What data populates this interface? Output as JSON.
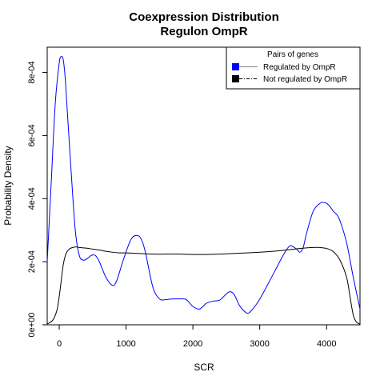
{
  "chart_data": {
    "type": "line",
    "title": "Coexpression Distribution",
    "subtitle": "Regulon OmpR",
    "xlabel": "SCR",
    "ylabel": "Probability Density",
    "xlim": [
      -180,
      4500
    ],
    "ylim": [
      0,
      0.00088
    ],
    "x_ticks": [
      0,
      1000,
      2000,
      3000,
      4000
    ],
    "x_tick_labels": [
      "0",
      "1000",
      "2000",
      "3000",
      "4000"
    ],
    "y_ticks": [
      0,
      0.0002,
      0.0004,
      0.0006,
      0.0008
    ],
    "y_tick_labels": [
      "0e+00",
      "2e-04",
      "4e-04",
      "6e-04",
      "8e-04"
    ],
    "grid": false,
    "legend": {
      "title": "Pairs of genes",
      "placement": "top-right",
      "entries": [
        "Regulated by OmpR",
        "Not regulated by OmpR"
      ]
    },
    "series": [
      {
        "name": "Regulated by OmpR",
        "color": "#0000ff",
        "x": [
          -180,
          -120,
          -60,
          0,
          30,
          60,
          90,
          120,
          180,
          240,
          300,
          360,
          420,
          480,
          540,
          600,
          700,
          800,
          860,
          950,
          1050,
          1100,
          1150,
          1200,
          1250,
          1300,
          1400,
          1500,
          1600,
          1700,
          1800,
          1900,
          2000,
          2100,
          2200,
          2300,
          2400,
          2500,
          2560,
          2620,
          2700,
          2800,
          2850,
          2950,
          3050,
          3150,
          3250,
          3350,
          3450,
          3550,
          3600,
          3650,
          3700,
          3800,
          3900,
          3950,
          4000,
          4050,
          4100,
          4150,
          4200,
          4300,
          4400,
          4500
        ],
        "y": [
          0.0002,
          0.00045,
          0.0007,
          0.00083,
          0.00085,
          0.00084,
          0.00078,
          0.00068,
          0.00048,
          0.0003,
          0.00022,
          0.000205,
          0.00021,
          0.00022,
          0.00022,
          0.0002,
          0.00015,
          0.000125,
          0.00014,
          0.0002,
          0.00026,
          0.000278,
          0.000283,
          0.00028,
          0.00026,
          0.00022,
          0.00012,
          8.2e-05,
          8e-05,
          8.2e-05,
          8.2e-05,
          8e-05,
          5.8e-05,
          5e-05,
          6.8e-05,
          7.5e-05,
          7.8e-05,
          9.8e-05,
          0.000105,
          9.5e-05,
          6e-05,
          3.8e-05,
          4e-05,
          6.5e-05,
          0.0001,
          0.00014,
          0.00018,
          0.00022,
          0.00025,
          0.00024,
          0.00023,
          0.000245,
          0.00029,
          0.00036,
          0.000385,
          0.000388,
          0.000385,
          0.000375,
          0.00036,
          0.00035,
          0.00033,
          0.00026,
          0.00015,
          5e-05
        ]
      },
      {
        "name": "Not regulated by OmpR",
        "color": "#000000",
        "x": [
          -180,
          -130,
          -80,
          -30,
          0,
          30,
          60,
          100,
          150,
          200,
          250,
          300,
          400,
          500,
          600,
          700,
          800,
          900,
          1000,
          1200,
          1400,
          1600,
          1800,
          2000,
          2200,
          2400,
          2600,
          2800,
          3000,
          3200,
          3400,
          3600,
          3800,
          3900,
          4000,
          4100,
          4200,
          4300,
          4350,
          4400,
          4450,
          4500
        ],
        "y": [
          3e-06,
          8e-06,
          2e-05,
          5e-05,
          9e-05,
          0.00014,
          0.00019,
          0.000225,
          0.00024,
          0.000245,
          0.000247,
          0.000245,
          0.000243,
          0.00024,
          0.000237,
          0.000233,
          0.00023,
          0.000228,
          0.000228,
          0.000226,
          0.000224,
          0.000224,
          0.000224,
          0.000223,
          0.000223,
          0.000224,
          0.000226,
          0.000228,
          0.00023,
          0.000233,
          0.000237,
          0.000242,
          0.000245,
          0.000245,
          0.000242,
          0.000232,
          0.000205,
          0.00015,
          9e-05,
          3e-05,
          8e-06,
          2e-06
        ]
      }
    ]
  }
}
